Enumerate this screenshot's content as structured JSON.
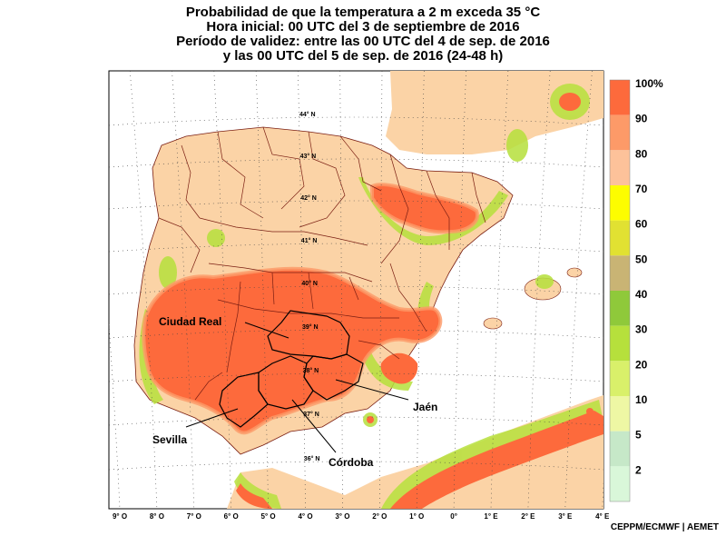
{
  "title": {
    "line1": "Probabilidad de que la temperatura a 2 m exceda 35 °C",
    "line2": "Hora inicial: 00 UTC del 3 de septiembre de 2016",
    "line3": "Período de validez: entre las 00 UTC del 4 de sep. de 2016",
    "line4": "y las 00 UTC del 5 de sep. de 2016 (24-48 h)"
  },
  "legend": {
    "labels": [
      "100%",
      "90",
      "80",
      "70",
      "60",
      "50",
      "40",
      "30",
      "20",
      "10",
      "5",
      "2"
    ],
    "colors": [
      "#fd6a3c",
      "#fd9a68",
      "#fdc29a",
      "#fdfd00",
      "#e1e132",
      "#c9b474",
      "#8fc93a",
      "#b6e03c",
      "#d9f06a",
      "#eef7a4",
      "#c6e8c8",
      "#d9f7d9"
    ]
  },
  "x_axis": {
    "labels": [
      "9° O",
      "8° O",
      "7° O",
      "6° O",
      "5° O",
      "4° O",
      "3° O",
      "2° O",
      "1° O",
      "0°",
      "1° E",
      "2° E",
      "3° E",
      "4° E"
    ]
  },
  "lat_labels": [
    "44° N",
    "43° N",
    "42° N",
    "41° N",
    "40° N",
    "39° N",
    "38° N",
    "37° N",
    "36° N"
  ],
  "cities": [
    {
      "name": "Ciudad Real"
    },
    {
      "name": "Jaén"
    },
    {
      "name": "Sevilla"
    },
    {
      "name": "Córdoba"
    }
  ],
  "credit": "CEPPM/ECMWF | AEMET",
  "colors": {
    "land_base": "#fbd3a6",
    "sea": "#ffffff",
    "high": "#fd6a3c",
    "border": "#7a1e12"
  }
}
